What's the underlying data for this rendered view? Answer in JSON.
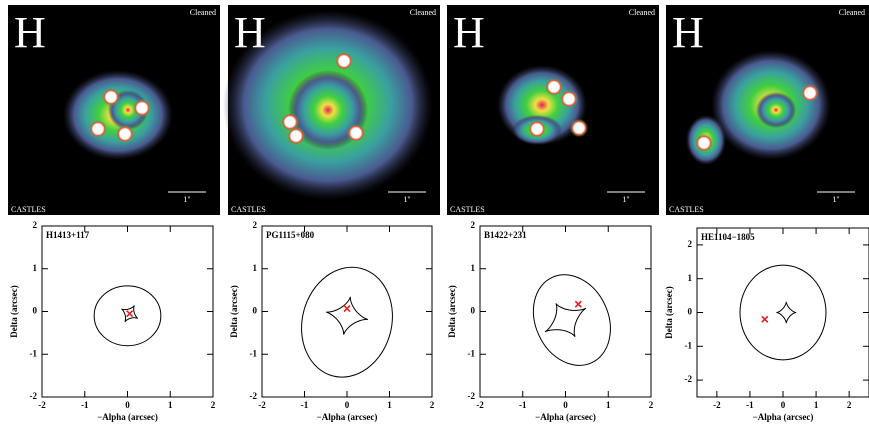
{
  "images": [
    {
      "band": "H",
      "tag": "Cleaned",
      "credit": "CASTLES",
      "scale": "1''"
    },
    {
      "band": "H",
      "tag": "Cleaned",
      "credit": "CASTLES",
      "scale": "1''"
    },
    {
      "band": "H",
      "tag": "Cleaned",
      "credit": "CASTLES",
      "scale": "1''"
    },
    {
      "band": "H",
      "tag": "Cleaned",
      "credit": "CASTLES",
      "scale": "1''"
    }
  ],
  "chart_data": [
    {
      "type": "scatter",
      "title": "H1413+117",
      "x_label": "−Alpha (arcsec)",
      "y_label": "Delta (arcsec)",
      "xlim": [
        -2,
        2
      ],
      "ylim": [
        -2,
        2
      ],
      "xticks": [
        -2,
        -1,
        0,
        1,
        2
      ],
      "yticks": [
        -2,
        -1,
        0,
        1,
        2
      ],
      "series": [
        {
          "color": "#e02020",
          "x": [
            0.05
          ],
          "values": [
            -0.05
          ]
        }
      ]
    },
    {
      "type": "scatter",
      "title": "PG1115+080",
      "x_label": "−Alpha (arcsec)",
      "y_label": "Delta (arcsec)",
      "xlim": [
        -2,
        2
      ],
      "ylim": [
        -2,
        2
      ],
      "xticks": [
        -2,
        -1,
        0,
        1,
        2
      ],
      "yticks": [
        -2,
        -1,
        0,
        1,
        2
      ],
      "series": [
        {
          "color": "#e02020",
          "x": [
            0
          ],
          "values": [
            0.07
          ]
        }
      ]
    },
    {
      "type": "scatter",
      "title": "B1422+231",
      "x_label": "−Alpha (arcsec)",
      "y_label": "Delta (arcsec)",
      "xlim": [
        -2,
        2
      ],
      "ylim": [
        -2,
        2
      ],
      "xticks": [
        -2,
        -1,
        0,
        1,
        2
      ],
      "yticks": [
        -2,
        -1,
        0,
        1,
        2
      ],
      "series": [
        {
          "color": "#e02020",
          "x": [
            0.3
          ],
          "values": [
            0.17
          ]
        }
      ]
    },
    {
      "type": "scatter",
      "title": "HE1104−1805",
      "x_label": "−Alpha (arcsec)",
      "y_label": "Delta (arcsec)",
      "xlim": [
        -2.6,
        2.6
      ],
      "ylim": [
        -2.5,
        2.5
      ],
      "xticks": [
        -2,
        -1,
        0,
        1,
        2
      ],
      "yticks": [
        -2,
        -1,
        0,
        1,
        2
      ],
      "series": [
        {
          "color": "#e02020",
          "x": [
            -0.55
          ],
          "values": [
            -0.2
          ]
        }
      ]
    }
  ]
}
